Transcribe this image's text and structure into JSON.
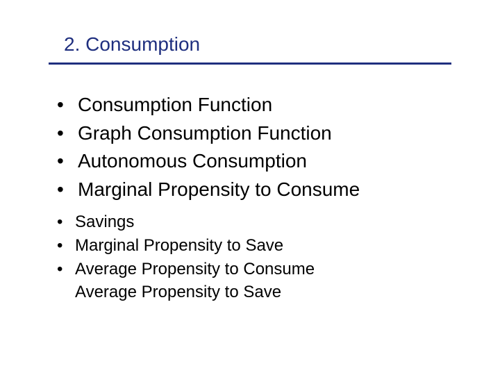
{
  "title": "2.  Consumption",
  "colors": {
    "title_color": "#1f2f7f",
    "underline_color": "#1f2f7f",
    "text_color": "#000000",
    "background": "#ffffff"
  },
  "typography": {
    "title_fontsize": 28,
    "main_fontsize": 28,
    "sub_fontsize": 24,
    "font_family": "Arial"
  },
  "main_items": [
    "Consumption Function",
    "Graph Consumption Function",
    "Autonomous Consumption",
    "Marginal Propensity to Consume"
  ],
  "sub_items": [
    "Savings",
    "Marginal Propensity to Save",
    "Average Propensity to Consume"
  ],
  "last_line": "Average Propensity to Save",
  "bullet_char": "•"
}
